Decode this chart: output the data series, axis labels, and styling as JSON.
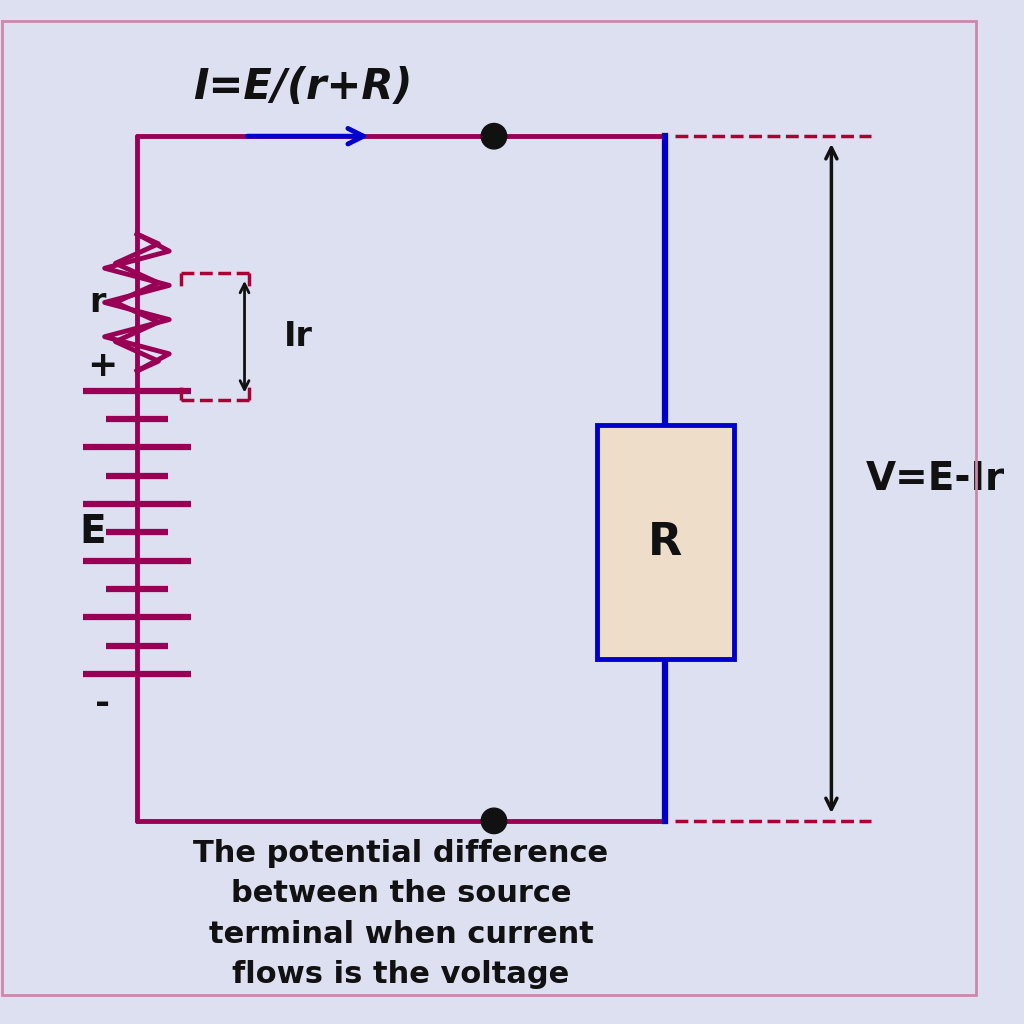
{
  "bg_color": "#dde0f0",
  "circuit_color": "#990055",
  "blue_color": "#0000cc",
  "black_color": "#111111",
  "title_text": "I=E/(r+R)",
  "caption": "The potential difference\nbetween the source\nterminal when current\nflows is the voltage",
  "label_E": "E",
  "label_r": "r",
  "label_plus": "+",
  "label_minus": "-",
  "label_Ir": "Ir",
  "label_V": "V=E-Ir",
  "label_R": "R",
  "resistor_fill": "#eeddc8",
  "dashed_color": "#aa0033"
}
